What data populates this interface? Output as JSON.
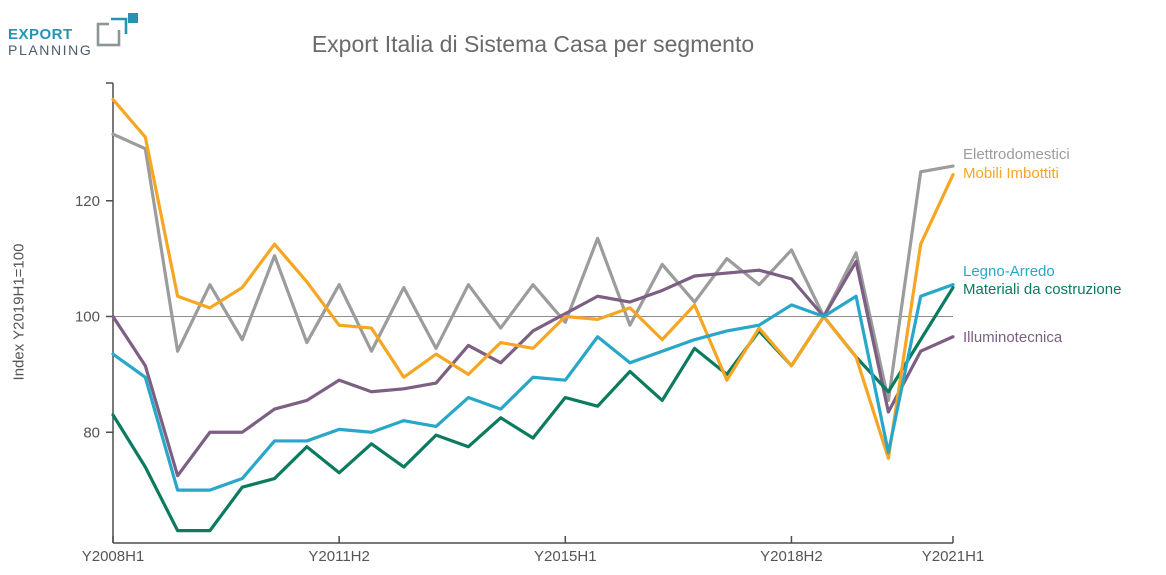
{
  "logo": {
    "line1": "EXPORT",
    "line2": "PLANNING"
  },
  "title": "Export Italia di Sistema Casa per segmento",
  "colors": {
    "accent_teal": "#2793B3",
    "logo_slate": "#4C5B6B",
    "logo_gray": "#8D9598",
    "title_text": "#6A6A6A",
    "axis": "#4D4D4D",
    "tick_text": "#555555",
    "reference_line": "#8C8C8C"
  },
  "chart_data": {
    "type": "line",
    "title": "Export Italia di Sistema Casa per segmento",
    "xlabel": "",
    "ylabel": "Index Y2019H1=100",
    "ylim": [
      61,
      140
    ],
    "y_ticks": [
      80,
      100,
      120
    ],
    "reference_line": 100,
    "grid": "off",
    "legend_position": "right",
    "x_categories": [
      "Y2008H1",
      "Y2008H2",
      "Y2009H1",
      "Y2009H2",
      "Y2010H1",
      "Y2010H2",
      "Y2011H1",
      "Y2011H2",
      "Y2012H1",
      "Y2012H2",
      "Y2013H1",
      "Y2013H2",
      "Y2014H1",
      "Y2014H2",
      "Y2015H1",
      "Y2015H2",
      "Y2016H1",
      "Y2016H2",
      "Y2017H1",
      "Y2017H2",
      "Y2018H1",
      "Y2018H2",
      "Y2019H1",
      "Y2019H2",
      "Y2020H1",
      "Y2020H2",
      "Y2021H1"
    ],
    "x_tick_indices": [
      0,
      7,
      14,
      21,
      26
    ],
    "x_tick_labels": [
      "Y2008H1",
      "Y2011H2",
      "Y2015H1",
      "Y2018H2",
      "Y2021H1"
    ],
    "series": [
      {
        "name": "Elettrodomestici",
        "color": "#9C9C9C",
        "values": [
          131.5,
          129,
          94,
          105.5,
          96,
          110.5,
          95.5,
          105.5,
          94,
          105,
          94.5,
          105.5,
          98,
          105.5,
          99,
          113.5,
          98.5,
          109,
          102.5,
          110,
          105.5,
          111.5,
          100,
          111,
          85.5,
          125,
          126
        ]
      },
      {
        "name": "Mobili Imbottiti",
        "color": "#F6A623",
        "values": [
          137.5,
          131,
          103.5,
          101.5,
          105,
          112.5,
          106,
          98.5,
          98,
          89.5,
          93.5,
          90,
          95.5,
          94.5,
          100,
          99.5,
          101.5,
          96,
          102,
          89,
          98,
          91.5,
          100,
          93,
          75.5,
          112.5,
          124.5
        ]
      },
      {
        "name": "Legno-Arredo",
        "color": "#29A7C9",
        "values": [
          93.5,
          89.5,
          70,
          70,
          72,
          78.5,
          78.5,
          80.5,
          80,
          82,
          81,
          86,
          84,
          89.5,
          89,
          96.5,
          92,
          94,
          96,
          97.5,
          98.5,
          102,
          100,
          103.5,
          76.5,
          103.5,
          105.5
        ]
      },
      {
        "name": "Materiali da costruzione",
        "color": "#0B7B5F",
        "values": [
          83,
          74,
          63,
          63,
          70.5,
          72,
          77.5,
          73,
          78,
          74,
          79.5,
          77.5,
          82.5,
          79,
          86,
          84.5,
          90.5,
          85.5,
          94.5,
          90,
          97.5,
          91.5,
          100,
          93,
          87,
          96,
          105
        ]
      },
      {
        "name": "Illuminotecnica",
        "color": "#7C5F82",
        "values": [
          100,
          91.5,
          72.5,
          80,
          80,
          84,
          85.5,
          89,
          87,
          87.5,
          88.5,
          95,
          92,
          97.5,
          100.5,
          103.5,
          102.5,
          104.5,
          107,
          107.5,
          108,
          106.5,
          100,
          109.5,
          83.5,
          94,
          96.5
        ]
      }
    ]
  }
}
